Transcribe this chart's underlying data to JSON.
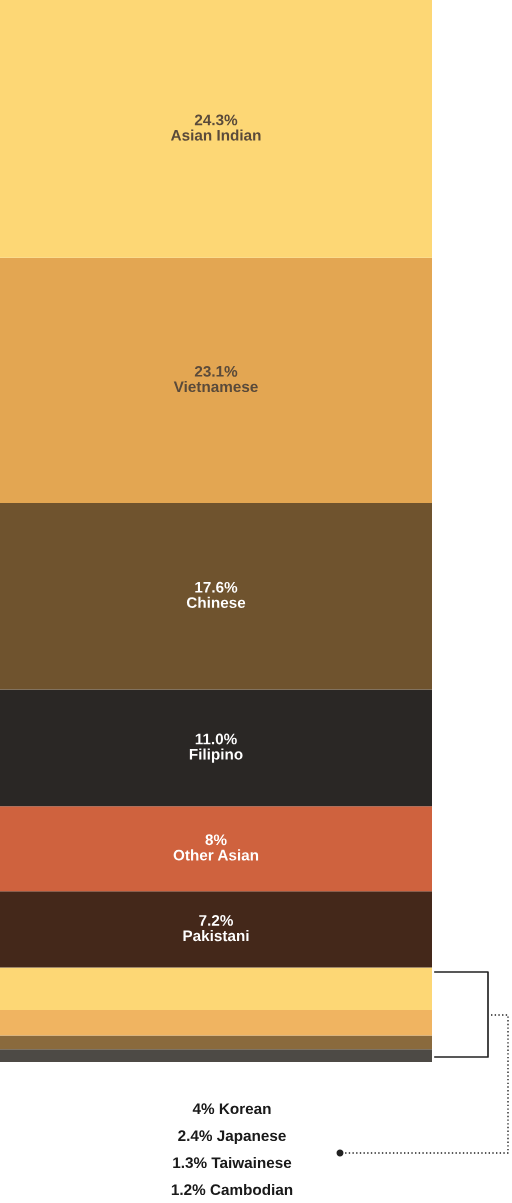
{
  "chart_data": {
    "type": "bar",
    "stacked": true,
    "categories": [
      null
    ],
    "series": [
      {
        "name": "Cambodian",
        "color": "#4d4a45",
        "values": [
          1.2
        ],
        "value_labels": [
          "1.2%"
        ]
      },
      {
        "name": "Taiwainese",
        "color": "#8a6a3d",
        "values": [
          1.3
        ],
        "value_labels": [
          "1.3%"
        ]
      },
      {
        "name": "Japanese",
        "color": "#f0b461",
        "values": [
          2.4
        ],
        "value_labels": [
          "2.4%"
        ]
      },
      {
        "name": "Korean",
        "color": "#fdd775",
        "values": [
          4
        ],
        "value_labels": [
          "4%"
        ]
      },
      {
        "name": "Pakistani",
        "color": "#44281a",
        "values": [
          7.2
        ],
        "value_labels": [
          "7.2%"
        ]
      },
      {
        "name": "Other Asian",
        "color": "#cf623e",
        "values": [
          8
        ],
        "value_labels": [
          "8%"
        ]
      },
      {
        "name": "Filipino",
        "color": "#2a2725",
        "values": [
          11.0
        ],
        "value_labels": [
          "11.0%"
        ]
      },
      {
        "name": "Chinese",
        "color": "#6f532e",
        "values": [
          17.6
        ],
        "value_labels": [
          "17.6%"
        ]
      },
      {
        "name": "Vietnamese",
        "color": "#e3a652",
        "values": [
          23.1
        ],
        "value_labels": [
          "23.1%"
        ]
      },
      {
        "name": "Asian Indian",
        "color": "#fdd775",
        "values": [
          24.3
        ],
        "value_labels": [
          "24.3%"
        ]
      }
    ]
  }
}
